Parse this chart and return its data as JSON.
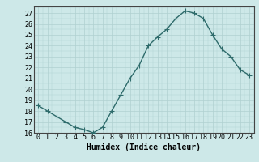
{
  "x": [
    0,
    1,
    2,
    3,
    4,
    5,
    6,
    7,
    8,
    9,
    10,
    11,
    12,
    13,
    14,
    15,
    16,
    17,
    18,
    19,
    20,
    21,
    22,
    23
  ],
  "y": [
    18.5,
    18.0,
    17.5,
    17.0,
    16.5,
    16.3,
    16.0,
    16.5,
    18.0,
    19.5,
    21.0,
    22.2,
    24.0,
    24.8,
    25.5,
    26.5,
    27.2,
    27.0,
    26.5,
    25.0,
    23.7,
    23.0,
    21.8,
    21.3
  ],
  "line_color": "#2e6b6b",
  "marker": "+",
  "marker_size": 4,
  "bg_color": "#cde8e8",
  "grid_major_color": "#b0d0d0",
  "xlabel": "Humidex (Indice chaleur)",
  "xlim": [
    -0.5,
    23.5
  ],
  "ylim": [
    16,
    27.6
  ],
  "yticks": [
    16,
    17,
    18,
    19,
    20,
    21,
    22,
    23,
    24,
    25,
    26,
    27
  ],
  "xticks": [
    0,
    1,
    2,
    3,
    4,
    5,
    6,
    7,
    8,
    9,
    10,
    11,
    12,
    13,
    14,
    15,
    16,
    17,
    18,
    19,
    20,
    21,
    22,
    23
  ],
  "tick_label_fontsize": 6,
  "xlabel_fontsize": 7,
  "line_width": 1.0
}
